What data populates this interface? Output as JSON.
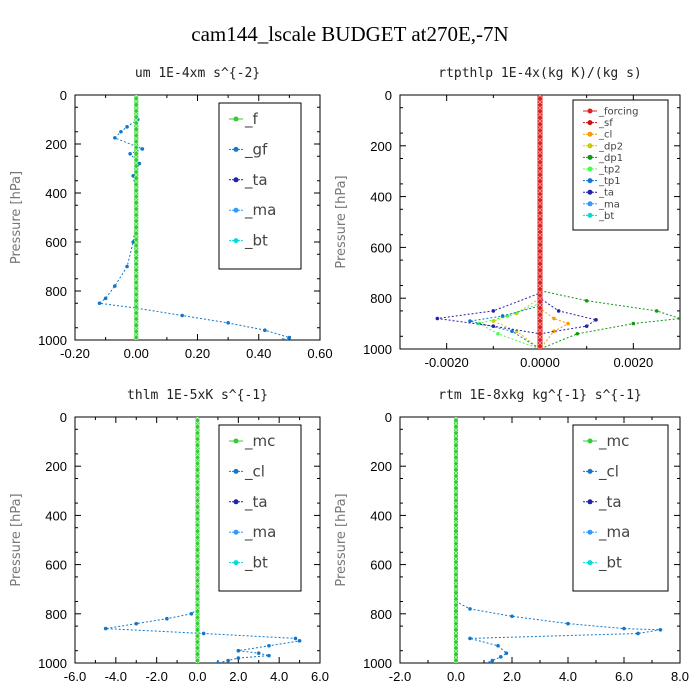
{
  "title": "cam144_lscale  BUDGET at270E,-7N",
  "chart_data": [
    {
      "type": "line",
      "title": "um   1E-4xm s^{-2}",
      "ylabel": "Pressure [hPa]",
      "xlim": [
        -0.2,
        0.6
      ],
      "ylim": [
        1000,
        0
      ],
      "xticks": [
        -0.2,
        0.0,
        0.2,
        0.4,
        0.6
      ],
      "xtick_labels": [
        "-0.20",
        "0.00",
        "0.20",
        "0.40",
        "0.60"
      ],
      "yticks": [
        0,
        200,
        400,
        600,
        800,
        1000
      ],
      "legend_position": "top-right",
      "series": [
        {
          "name": "_f",
          "color": "#33cc33",
          "x": [
            0,
            0,
            0,
            0,
            0,
            0,
            0,
            0,
            0,
            0,
            0
          ],
          "y": [
            0,
            100,
            200,
            300,
            400,
            500,
            600,
            700,
            800,
            900,
            1000
          ]
        },
        {
          "name": "_gf",
          "color": "#1177cc",
          "x": [
            0.0,
            0.005,
            -0.03,
            -0.05,
            -0.07,
            0.02,
            -0.02,
            0.01,
            -0.01,
            0.0,
            0.0,
            -0.01,
            -0.03,
            -0.07,
            -0.1,
            -0.12,
            0.0,
            0.15,
            0.3,
            0.42,
            0.5,
            0.48
          ],
          "y": [
            0,
            100,
            130,
            150,
            175,
            220,
            240,
            280,
            330,
            400,
            500,
            600,
            700,
            780,
            830,
            850,
            870,
            900,
            930,
            960,
            990,
            1000
          ]
        },
        {
          "name": "_ta",
          "color": "#2222aa",
          "x": [
            0,
            0,
            0,
            0,
            0
          ],
          "y": [
            0,
            250,
            500,
            750,
            1000
          ]
        },
        {
          "name": "_ma",
          "color": "#3399ff",
          "x": [
            0,
            0,
            0,
            0,
            0
          ],
          "y": [
            0,
            250,
            500,
            750,
            1000
          ]
        },
        {
          "name": "_bt",
          "color": "#00dddd",
          "x": [
            0,
            0,
            0,
            0,
            0
          ],
          "y": [
            0,
            250,
            500,
            750,
            1000
          ]
        }
      ]
    },
    {
      "type": "line",
      "title": "rtpthlp   1E-4x(kg K)/(kg s)",
      "ylabel": "Pressure [hPa]",
      "xlim": [
        -0.003,
        0.003
      ],
      "ylim": [
        1000,
        0
      ],
      "xticks": [
        -0.002,
        0.0,
        0.002
      ],
      "xtick_labels": [
        "-0.0020",
        "0.0000",
        "0.0020"
      ],
      "yticks": [
        0,
        200,
        400,
        600,
        800,
        1000
      ],
      "legend_position": "top-right",
      "series": [
        {
          "name": "_forcing",
          "color": "#dd2222",
          "x": [
            0,
            0,
            0,
            0,
            0
          ],
          "y": [
            0,
            250,
            500,
            750,
            1000
          ]
        },
        {
          "name": "_sf",
          "color": "#cc1111",
          "x": [
            0,
            0,
            0,
            0,
            0
          ],
          "y": [
            0,
            250,
            500,
            750,
            1000
          ]
        },
        {
          "name": "_cl",
          "color": "#ff9900",
          "x": [
            0,
            0,
            0,
            0.0003,
            0.0006,
            0.0003,
            0
          ],
          "y": [
            0,
            750,
            840,
            880,
            900,
            930,
            1000
          ]
        },
        {
          "name": "_dp2",
          "color": "#cccc00",
          "x": [
            0,
            0,
            -0.0005,
            -0.001,
            -0.0005,
            0
          ],
          "y": [
            0,
            800,
            860,
            890,
            930,
            1000
          ]
        },
        {
          "name": "_dp1",
          "color": "#119911",
          "x": [
            0,
            0,
            0.001,
            0.0025,
            0.003,
            0.002,
            0.0008,
            0
          ],
          "y": [
            0,
            770,
            810,
            850,
            880,
            900,
            940,
            1000
          ]
        },
        {
          "name": "_tp2",
          "color": "#44ff44",
          "x": [
            0,
            0,
            -0.0007,
            -0.0013,
            -0.0009,
            0
          ],
          "y": [
            0,
            820,
            870,
            900,
            940,
            1000
          ]
        },
        {
          "name": "_tp1",
          "color": "#1177cc",
          "x": [
            0,
            0,
            -0.0008,
            -0.0015,
            -0.0006,
            0
          ],
          "y": [
            0,
            830,
            870,
            890,
            930,
            1000
          ]
        },
        {
          "name": "_ta",
          "color": "#2222aa",
          "x": [
            0,
            0,
            -0.001,
            -0.0022,
            -0.001,
            0,
            0.001,
            0.0012,
            0.0004,
            0
          ],
          "y": [
            0,
            780,
            850,
            880,
            910,
            940,
            910,
            885,
            850,
            800
          ]
        },
        {
          "name": "_ma",
          "color": "#3399ff",
          "x": [
            0,
            0,
            0,
            0,
            0
          ],
          "y": [
            0,
            250,
            500,
            750,
            1000
          ]
        },
        {
          "name": "_bt",
          "color": "#00dddd",
          "x": [
            0,
            0,
            0,
            0,
            0
          ],
          "y": [
            0,
            250,
            500,
            750,
            1000
          ]
        }
      ]
    },
    {
      "type": "line",
      "title": "thlm   1E-5xK s^{-1}",
      "ylabel": "Pressure [hPa]",
      "xlim": [
        -6.0,
        6.0
      ],
      "ylim": [
        1000,
        0
      ],
      "xticks": [
        -6,
        -4,
        -2,
        0,
        2,
        4,
        6
      ],
      "xtick_labels": [
        "-6.0",
        "-4.0",
        "-2.0",
        "0.0",
        "2.0",
        "4.0",
        "6.0"
      ],
      "yticks": [
        0,
        200,
        400,
        600,
        800,
        1000
      ],
      "legend_position": "top-right",
      "series": [
        {
          "name": "_mc",
          "color": "#33cc33",
          "x": [
            0,
            0,
            0,
            0,
            0,
            0,
            0,
            0,
            0,
            0,
            0
          ],
          "y": [
            0,
            100,
            200,
            300,
            400,
            500,
            600,
            700,
            800,
            900,
            1000
          ]
        },
        {
          "name": "_cl",
          "color": "#1177cc",
          "x": [
            0,
            0,
            -0.3,
            -1.5,
            -3.0,
            -4.5,
            0.3,
            4.8,
            5.0,
            3.5,
            2.0,
            3.0,
            3.5,
            2.0,
            1.5,
            1.0
          ],
          "y": [
            0,
            780,
            800,
            820,
            840,
            860,
            880,
            900,
            910,
            930,
            950,
            960,
            970,
            980,
            990,
            1000
          ]
        },
        {
          "name": "_ta",
          "color": "#2222aa",
          "x": [
            0,
            0,
            0,
            0,
            0
          ],
          "y": [
            0,
            250,
            500,
            750,
            1000
          ]
        },
        {
          "name": "_ma",
          "color": "#3399ff",
          "x": [
            0,
            0,
            0,
            0,
            0
          ],
          "y": [
            0,
            250,
            500,
            750,
            1000
          ]
        },
        {
          "name": "_bt",
          "color": "#00dddd",
          "x": [
            0,
            0,
            0,
            0,
            0
          ],
          "y": [
            0,
            250,
            500,
            750,
            1000
          ]
        }
      ]
    },
    {
      "type": "line",
      "title": "rtm   1E-8xkg kg^{-1} s^{-1}",
      "ylabel": "Pressure [hPa]",
      "xlim": [
        -2.0,
        8.0
      ],
      "ylim": [
        1000,
        0
      ],
      "xticks": [
        -2,
        0,
        2,
        4,
        6,
        8
      ],
      "xtick_labels": [
        "-2.0",
        "0.0",
        "2.0",
        "4.0",
        "6.0",
        "8.0"
      ],
      "yticks": [
        0,
        200,
        400,
        600,
        800,
        1000
      ],
      "legend_position": "top-right",
      "series": [
        {
          "name": "_mc",
          "color": "#33cc33",
          "x": [
            0,
            0,
            0,
            0,
            0,
            0,
            0,
            0,
            0,
            0,
            0
          ],
          "y": [
            0,
            100,
            200,
            300,
            400,
            500,
            600,
            700,
            800,
            900,
            1000
          ]
        },
        {
          "name": "_cl",
          "color": "#1177cc",
          "x": [
            0,
            0,
            0.5,
            2.0,
            4.0,
            6.0,
            7.3,
            6.5,
            0.5,
            1.5,
            1.8,
            1.6,
            1.3,
            1.2
          ],
          "y": [
            0,
            750,
            780,
            810,
            840,
            860,
            865,
            880,
            900,
            930,
            960,
            975,
            990,
            1000
          ]
        },
        {
          "name": "_ta",
          "color": "#2222aa",
          "x": [
            0,
            0,
            0,
            0,
            0
          ],
          "y": [
            0,
            250,
            500,
            750,
            1000
          ]
        },
        {
          "name": "_ma",
          "color": "#3399ff",
          "x": [
            0,
            0,
            0,
            0,
            0
          ],
          "y": [
            0,
            250,
            500,
            750,
            1000
          ]
        },
        {
          "name": "_bt",
          "color": "#00dddd",
          "x": [
            0,
            0,
            0,
            0,
            0
          ],
          "y": [
            0,
            250,
            500,
            750,
            1000
          ]
        }
      ]
    }
  ]
}
